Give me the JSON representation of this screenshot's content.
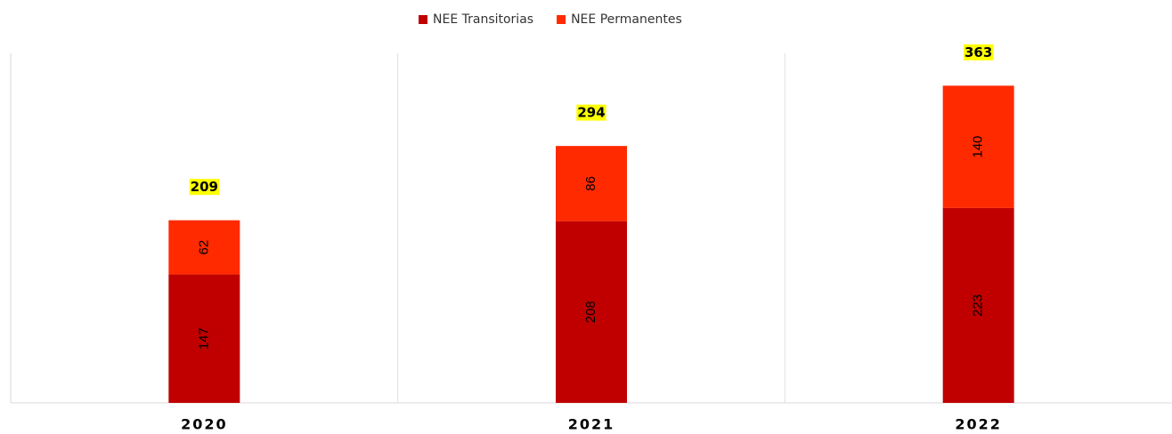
{
  "chart_data": {
    "type": "stacked-bar",
    "categories": [
      "2020",
      "2021",
      "2022"
    ],
    "series": [
      {
        "name": "NEE Transitorias",
        "color": "#c00000",
        "values": [
          147,
          208,
          223
        ]
      },
      {
        "name": "NEE Permanentes",
        "color": "#ff2a00",
        "values": [
          62,
          86,
          140
        ]
      }
    ],
    "totals": [
      209,
      294,
      363
    ],
    "total_label_background": "#ffff00",
    "ylim": [
      0,
      400
    ],
    "legend": "top"
  }
}
